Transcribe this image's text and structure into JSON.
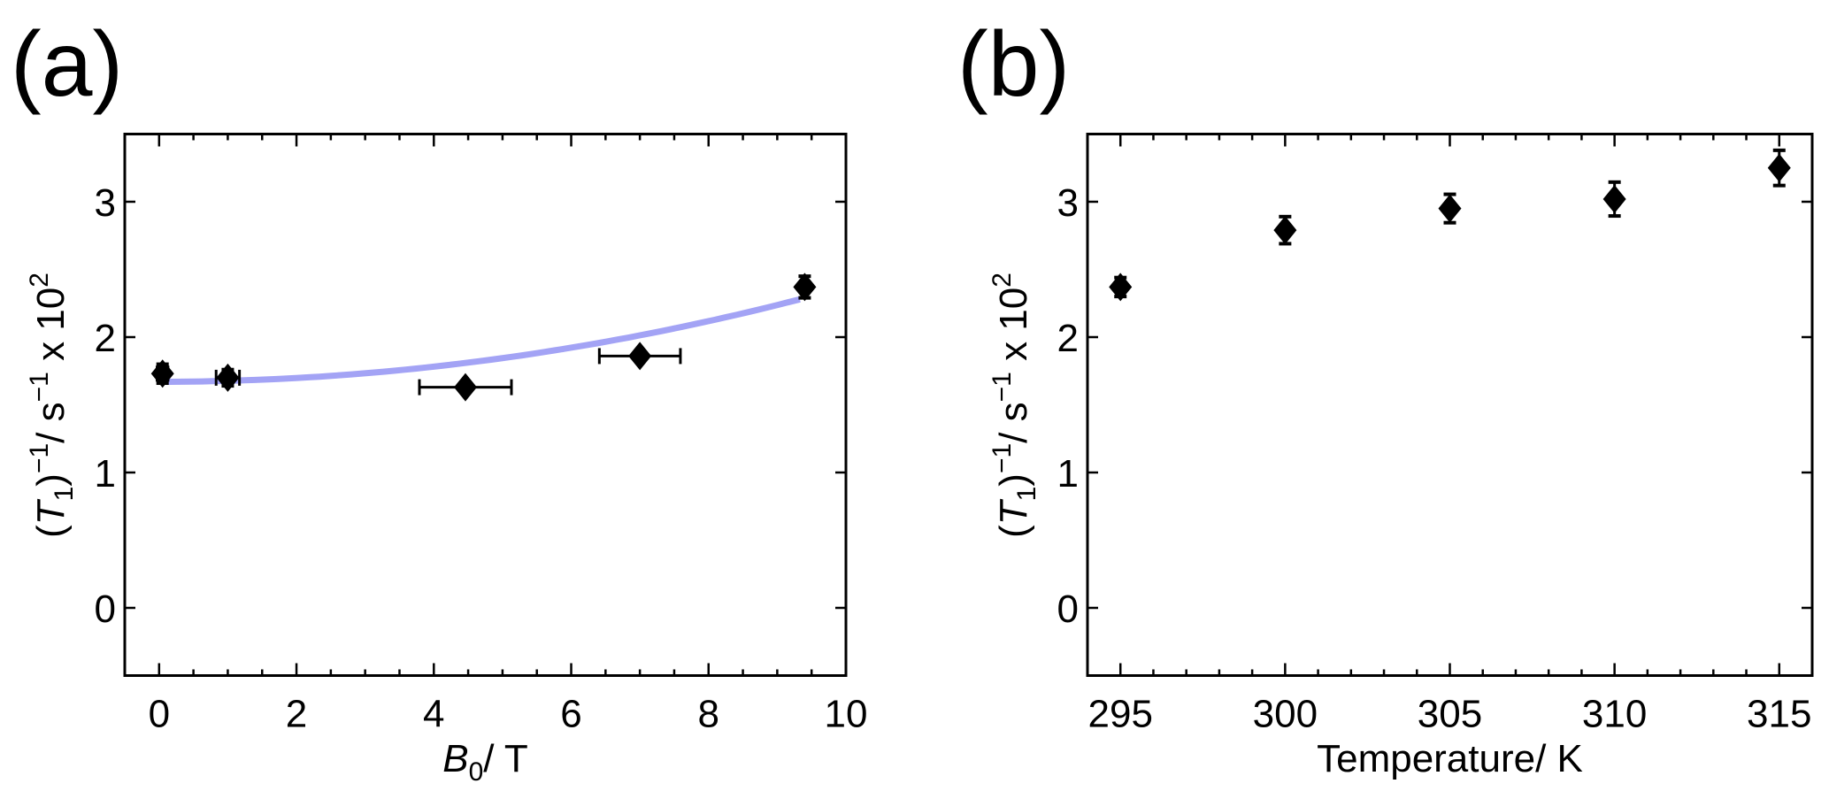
{
  "chart_data": [
    {
      "panel_label": "(a)",
      "type": "scatter",
      "xlabel_parts": [
        {
          "text": "B",
          "style": "italic"
        },
        {
          "text": "0",
          "style": "sub"
        },
        {
          "text": "/ T",
          "style": "normal"
        }
      ],
      "ylabel_parts": [
        {
          "text": "(",
          "style": "normal"
        },
        {
          "text": "T",
          "style": "italic"
        },
        {
          "text": "1",
          "style": "sub"
        },
        {
          "text": ")",
          "style": "normal"
        },
        {
          "text": "−1",
          "style": "sup"
        },
        {
          "text": "/ s",
          "style": "normal"
        },
        {
          "text": "−1",
          "style": "sup"
        },
        {
          "text": " x 10",
          "style": "normal"
        },
        {
          "text": "2",
          "style": "sup"
        }
      ],
      "xlim": [
        -0.5,
        10
      ],
      "ylim": [
        -0.5,
        3.5
      ],
      "xticks": [
        0,
        2,
        4,
        6,
        8,
        10
      ],
      "xtick_labels": [
        "0",
        "2",
        "4",
        "6",
        "8",
        "10"
      ],
      "xminor_step": 0.5,
      "yticks": [
        0,
        1,
        2,
        3
      ],
      "ytick_labels": [
        "0",
        "1",
        "2",
        "3"
      ],
      "grid": false,
      "points": [
        {
          "x": 0.05,
          "y": 1.73,
          "yerr": 0.07,
          "xerr": 0.08
        },
        {
          "x": 1.0,
          "y": 1.7,
          "yerr": 0.06,
          "xerr": 0.17
        },
        {
          "x": 4.46,
          "y": 1.63,
          "yerr": 0.03,
          "xerr": 0.67
        },
        {
          "x": 7.0,
          "y": 1.86,
          "yerr": 0.03,
          "xerr": 0.59
        },
        {
          "x": 9.4,
          "y": 2.37,
          "yerr": 0.08,
          "xerr": 0
        }
      ],
      "fit": {
        "type": "quadratic",
        "a": 1.67,
        "c": 0.007,
        "x_range": [
          0,
          9.33
        ],
        "color": "#a3a3f5"
      }
    },
    {
      "panel_label": "(b)",
      "type": "scatter",
      "xlabel_parts": [
        {
          "text": "Temperature/ K",
          "style": "normal"
        }
      ],
      "ylabel_parts": [
        {
          "text": "(",
          "style": "normal"
        },
        {
          "text": "T",
          "style": "italic"
        },
        {
          "text": "1",
          "style": "sub"
        },
        {
          "text": ")",
          "style": "normal"
        },
        {
          "text": "−1",
          "style": "sup"
        },
        {
          "text": "/ s",
          "style": "normal"
        },
        {
          "text": "−1",
          "style": "sup"
        },
        {
          "text": " x 10",
          "style": "normal"
        },
        {
          "text": "2",
          "style": "sup"
        }
      ],
      "xlim": [
        294,
        316
      ],
      "ylim": [
        -0.5,
        3.5
      ],
      "xticks": [
        295,
        300,
        305,
        310,
        315
      ],
      "xtick_labels": [
        "295",
        "300",
        "305",
        "310",
        "315"
      ],
      "xminor_step": 1,
      "yticks": [
        0,
        1,
        2,
        3
      ],
      "ytick_labels": [
        "0",
        "1",
        "2",
        "3"
      ],
      "grid": false,
      "points": [
        {
          "x": 295,
          "y": 2.37,
          "yerr": 0.07,
          "xerr": 0
        },
        {
          "x": 300,
          "y": 2.79,
          "yerr": 0.1,
          "xerr": 0
        },
        {
          "x": 305,
          "y": 2.95,
          "yerr": 0.105,
          "xerr": 0
        },
        {
          "x": 310,
          "y": 3.02,
          "yerr": 0.125,
          "xerr": 0
        },
        {
          "x": 315,
          "y": 3.25,
          "yerr": 0.13,
          "xerr": 0
        }
      ]
    }
  ]
}
